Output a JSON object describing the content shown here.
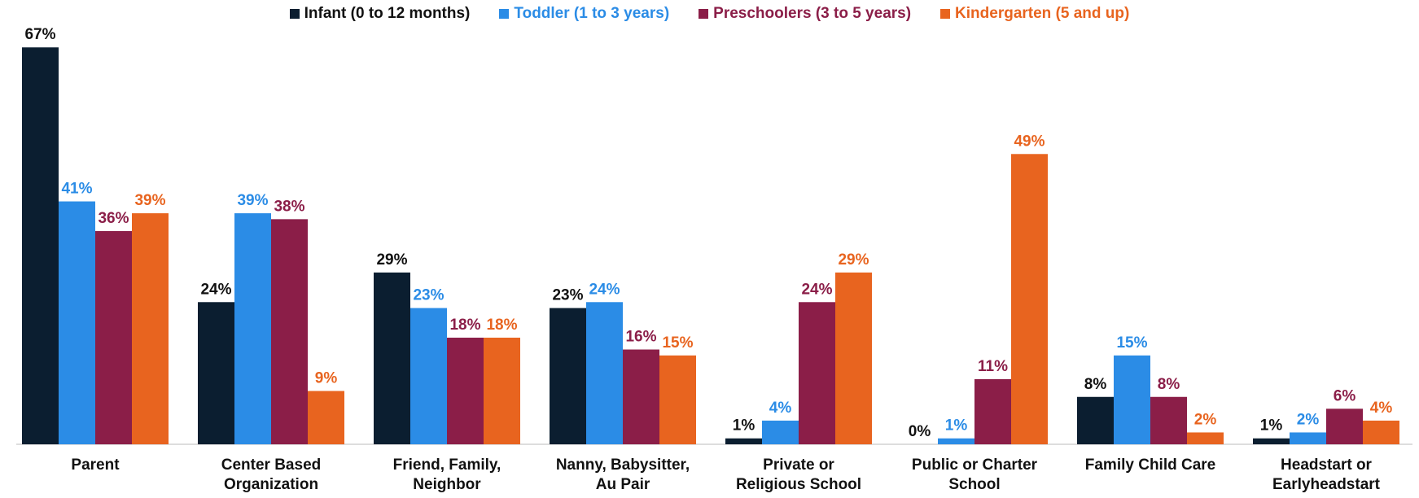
{
  "chart_data": {
    "type": "bar",
    "categories": [
      "Parent",
      "Center Based\nOrganization",
      "Friend, Family,\nNeighbor",
      "Nanny, Babysitter,\nAu Pair",
      "Private or\nReligious School",
      "Public or Charter\nSchool",
      "Family Child Care",
      "Headstart or\nEarlyheadstart"
    ],
    "legend": "top",
    "series": [
      {
        "name": "Infant (0 to 12 months)",
        "color": "#0b1e30",
        "values": [
          67,
          24,
          29,
          23,
          1,
          0,
          8,
          1
        ],
        "value_labels": [
          "67%",
          "24%",
          "29%",
          "23%",
          "1%",
          "0%",
          "8%",
          "1%"
        ]
      },
      {
        "name": "Toddler (1 to 3 years)",
        "color": "#2b8ce6",
        "values": [
          41,
          39,
          23,
          24,
          4,
          1,
          15,
          2
        ],
        "value_labels": [
          "41%",
          "39%",
          "23%",
          "24%",
          "4%",
          "1%",
          "15%",
          "2%"
        ]
      },
      {
        "name": "Preschoolers (3 to 5 years)",
        "color": "#8b1e48",
        "values": [
          36,
          38,
          18,
          16,
          24,
          11,
          8,
          6
        ],
        "value_labels": [
          "36%",
          "38%",
          "18%",
          "16%",
          "24%",
          "11%",
          "8%",
          "6%"
        ]
      },
      {
        "name": "Kindergarten (5 and up)",
        "color": "#e8641f",
        "values": [
          39,
          9,
          18,
          15,
          29,
          49,
          2,
          4
        ],
        "value_labels": [
          "39%",
          "9%",
          "18%",
          "15%",
          "29%",
          "49%",
          "2%",
          "4%"
        ]
      }
    ]
  }
}
